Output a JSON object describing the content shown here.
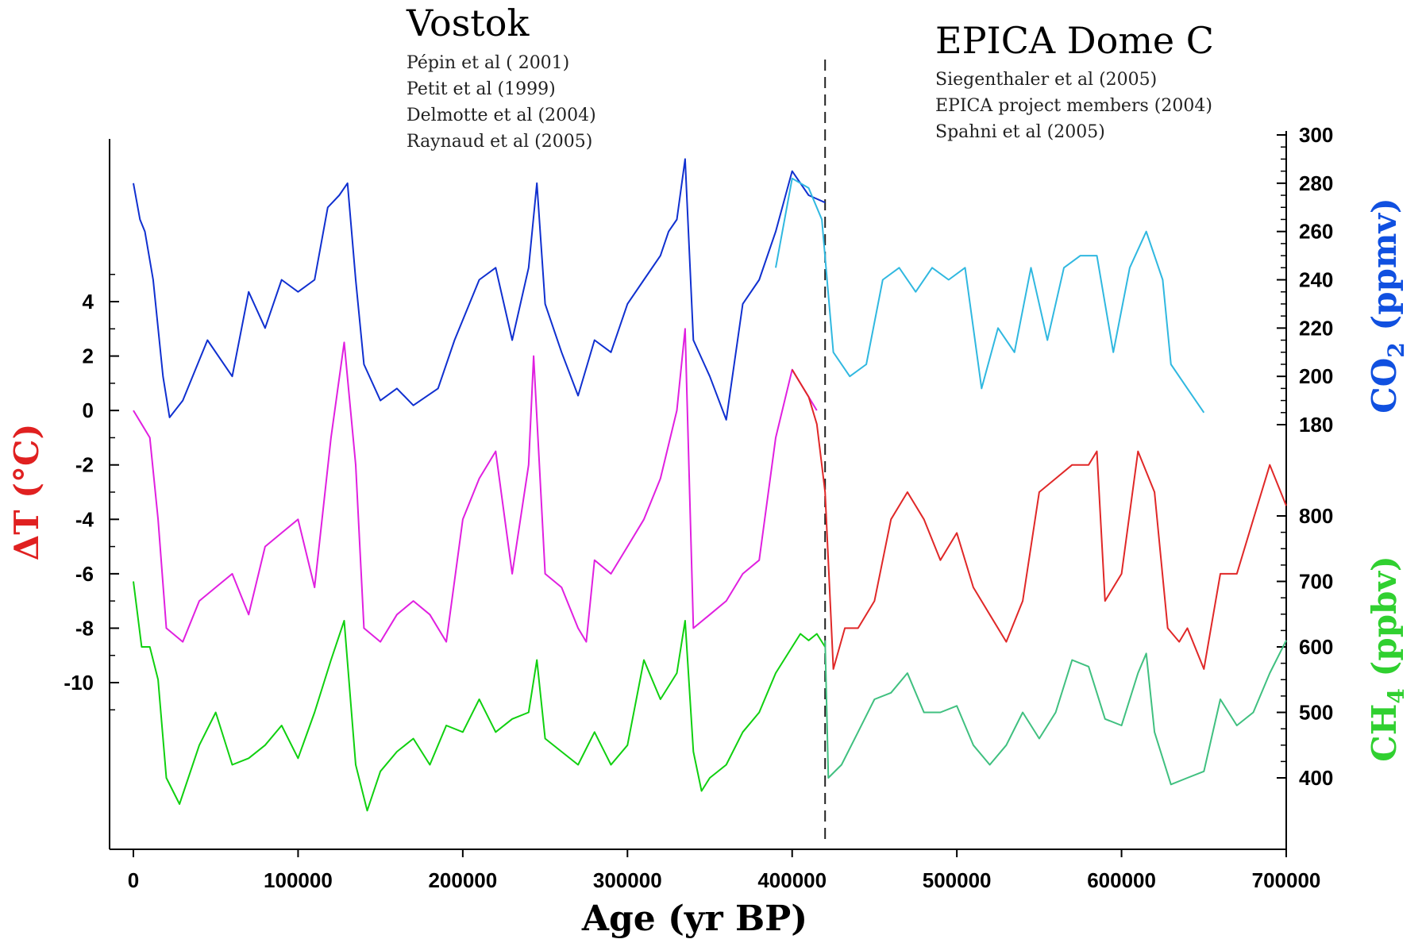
{
  "chart_data": {
    "type": "line",
    "title": "",
    "xlabel": "Age (yr BP)",
    "xlim": [
      0,
      700000
    ],
    "x_ticks": [
      "0",
      "100000",
      "200000",
      "300000",
      "400000",
      "500000",
      "600000",
      "700000"
    ],
    "divider_x": 420000,
    "annotations": {
      "vostok": {
        "label": "Vostok",
        "refs": [
          "Pépin et al ( 2001)",
          "Petit et al (1999)",
          "Delmotte et al (2004)",
          "Raynaud et al (2005)"
        ]
      },
      "epica": {
        "label": "EPICA Dome C",
        "refs": [
          "Siegenthaler et al (2005)",
          "EPICA project members (2004)",
          "Spahni et al (2005)"
        ]
      }
    },
    "axes": {
      "temp": {
        "label": "ΔT (°C)",
        "ticks": [
          "4",
          "2",
          "0",
          "-2",
          "-4",
          "-6",
          "-8",
          "-10"
        ],
        "ylim": [
          -10,
          4
        ]
      },
      "co2": {
        "label_main": "CO",
        "label_sub": "2",
        "label_tail": " (ppmv)",
        "ticks": [
          "300",
          "280",
          "260",
          "240",
          "220",
          "200",
          "180"
        ],
        "ylim": [
          180,
          300
        ]
      },
      "ch4": {
        "label_main": "CH",
        "label_sub": "4",
        "label_tail": " (ppbv)",
        "ticks": [
          "800",
          "700",
          "600",
          "500",
          "400"
        ],
        "ylim": [
          400,
          800
        ]
      }
    },
    "colors": {
      "co2_vostok": "#1030d0",
      "co2_epica": "#30b8e0",
      "temp_vostok": "#e020e0",
      "temp_epica": "#e02828",
      "ch4_vostok": "#10d010",
      "ch4_epica": "#40c080",
      "temp_axis_label": "#e02020",
      "co2_axis_label": "#1050e0",
      "ch4_axis_label": "#30d030"
    },
    "series": [
      {
        "key": "co2_vostok",
        "axis": "co2",
        "x": [
          0,
          4000,
          7000,
          12000,
          18000,
          22000,
          30000,
          45000,
          60000,
          70000,
          80000,
          90000,
          100000,
          110000,
          118000,
          125000,
          130000,
          135000,
          140000,
          150000,
          160000,
          170000,
          185000,
          195000,
          210000,
          220000,
          230000,
          240000,
          245000,
          250000,
          260000,
          270000,
          280000,
          290000,
          300000,
          310000,
          320000,
          325000,
          330000,
          335000,
          340000,
          350000,
          360000,
          370000,
          380000,
          390000,
          400000,
          410000,
          420000
        ],
        "y": [
          280,
          265,
          260,
          240,
          200,
          183,
          190,
          215,
          200,
          235,
          220,
          240,
          235,
          240,
          270,
          275,
          280,
          240,
          205,
          190,
          195,
          188,
          195,
          215,
          240,
          245,
          215,
          245,
          280,
          230,
          210,
          192,
          215,
          210,
          230,
          240,
          250,
          260,
          265,
          290,
          215,
          200,
          182,
          230,
          240,
          260,
          285,
          275,
          272
        ]
      },
      {
        "key": "co2_epica",
        "axis": "co2",
        "x": [
          390000,
          400000,
          410000,
          418000,
          425000,
          435000,
          445000,
          455000,
          465000,
          475000,
          485000,
          495000,
          505000,
          515000,
          525000,
          535000,
          545000,
          555000,
          565000,
          575000,
          585000,
          595000,
          605000,
          615000,
          625000,
          630000,
          640000,
          650000
        ],
        "y": [
          245,
          282,
          278,
          265,
          210,
          200,
          205,
          240,
          245,
          235,
          245,
          240,
          245,
          195,
          220,
          210,
          245,
          215,
          245,
          250,
          250,
          210,
          245,
          260,
          240,
          205,
          195,
          185
        ]
      },
      {
        "key": "temp_vostok",
        "axis": "temp",
        "x": [
          0,
          5000,
          10000,
          15000,
          20000,
          30000,
          40000,
          50000,
          60000,
          70000,
          80000,
          90000,
          100000,
          110000,
          120000,
          128000,
          135000,
          140000,
          150000,
          160000,
          170000,
          180000,
          190000,
          200000,
          210000,
          220000,
          230000,
          240000,
          243000,
          250000,
          260000,
          270000,
          275000,
          280000,
          290000,
          300000,
          310000,
          320000,
          330000,
          335000,
          340000,
          350000,
          360000,
          370000,
          380000,
          390000,
          400000,
          405000,
          410000,
          415000
        ],
        "y": [
          0,
          -0.5,
          -1,
          -4,
          -8,
          -8.5,
          -7,
          -6.5,
          -6,
          -7.5,
          -5,
          -4.5,
          -4,
          -6.5,
          -1,
          2.5,
          -2,
          -8,
          -8.5,
          -7.5,
          -7,
          -7.5,
          -8.5,
          -4,
          -2.5,
          -1.5,
          -6,
          -2,
          2,
          -6,
          -6.5,
          -8,
          -8.5,
          -5.5,
          -6,
          -5,
          -4,
          -2.5,
          0,
          3,
          -8,
          -7.5,
          -7,
          -6,
          -5.5,
          -1,
          1.5,
          1,
          0.5,
          0
        ]
      },
      {
        "key": "temp_epica",
        "axis": "temp",
        "x": [
          400000,
          405000,
          410000,
          415000,
          420000,
          425000,
          432000,
          440000,
          450000,
          460000,
          470000,
          480000,
          490000,
          500000,
          510000,
          520000,
          530000,
          540000,
          550000,
          560000,
          570000,
          580000,
          585000,
          590000,
          600000,
          610000,
          620000,
          628000,
          635000,
          640000,
          650000,
          660000,
          670000,
          680000,
          690000,
          700000
        ],
        "y": [
          1.5,
          1,
          0.5,
          -0.5,
          -3,
          -9.5,
          -8,
          -8,
          -7,
          -4,
          -3,
          -4,
          -5.5,
          -4.5,
          -6.5,
          -7.5,
          -8.5,
          -7,
          -3,
          -2.5,
          -2,
          -2,
          -1.5,
          -7,
          -6,
          -1.5,
          -3,
          -8,
          -8.5,
          -8,
          -9.5,
          -6,
          -6,
          -4,
          -2,
          -3.5
        ]
      },
      {
        "key": "ch4_vostok",
        "axis": "ch4",
        "x": [
          0,
          5000,
          10000,
          15000,
          20000,
          28000,
          40000,
          50000,
          60000,
          70000,
          80000,
          90000,
          100000,
          110000,
          120000,
          128000,
          135000,
          142000,
          150000,
          160000,
          170000,
          180000,
          190000,
          200000,
          210000,
          220000,
          230000,
          240000,
          245000,
          250000,
          260000,
          270000,
          280000,
          290000,
          300000,
          310000,
          320000,
          330000,
          335000,
          340000,
          345000,
          350000,
          360000,
          370000,
          380000,
          390000,
          400000,
          405000,
          410000,
          415000,
          420000
        ],
        "y": [
          700,
          600,
          600,
          550,
          400,
          360,
          450,
          500,
          420,
          430,
          450,
          480,
          430,
          500,
          580,
          640,
          420,
          350,
          410,
          440,
          460,
          420,
          480,
          470,
          520,
          470,
          490,
          500,
          580,
          460,
          440,
          420,
          470,
          420,
          450,
          580,
          520,
          560,
          640,
          440,
          380,
          400,
          420,
          470,
          500,
          560,
          600,
          620,
          610,
          620,
          600
        ]
      },
      {
        "key": "ch4_epica",
        "axis": "ch4",
        "x": [
          420000,
          422000,
          430000,
          440000,
          450000,
          460000,
          470000,
          480000,
          490000,
          500000,
          510000,
          520000,
          530000,
          540000,
          550000,
          560000,
          570000,
          580000,
          590000,
          600000,
          610000,
          615000,
          620000,
          630000,
          640000,
          650000,
          660000,
          670000,
          680000,
          690000,
          700000
        ],
        "y": [
          610,
          400,
          420,
          470,
          520,
          530,
          560,
          500,
          500,
          510,
          450,
          420,
          450,
          500,
          460,
          500,
          580,
          570,
          490,
          480,
          560,
          590,
          470,
          390,
          400,
          410,
          520,
          480,
          500,
          560,
          610
        ]
      }
    ]
  }
}
